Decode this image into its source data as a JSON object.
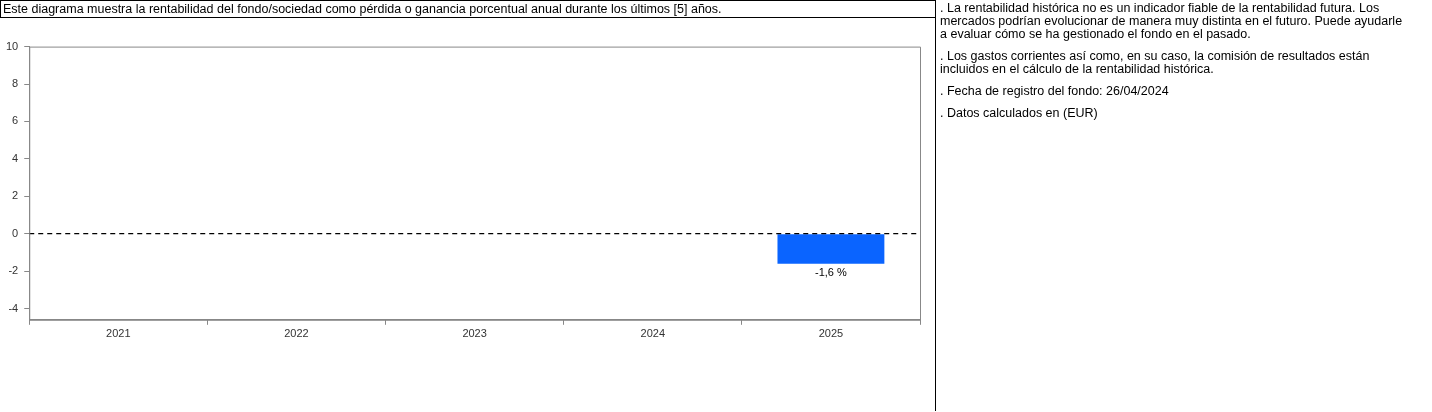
{
  "chart_data": {
    "type": "bar",
    "title": "Este diagrama muestra la rentabilidad del fondo/sociedad como pérdida o ganancia porcentual anual durante los últimos [5] años.",
    "categories": [
      "2021",
      "2022",
      "2023",
      "2024",
      "2025"
    ],
    "series": [
      {
        "color": "#0a64ff",
        "values": [
          null,
          null,
          null,
          null,
          -1.6
        ],
        "value_labels": [
          null,
          null,
          null,
          null,
          "-1,6 %"
        ]
      }
    ],
    "ylim": [
      -4.6,
      10
    ],
    "yticks": [
      -4,
      -2,
      0,
      2,
      4,
      6,
      8,
      10
    ],
    "grid": false,
    "legend": false,
    "ref_lines": [
      {
        "axis": "y",
        "value": 0,
        "line_style": "dashed",
        "color": "#000000"
      }
    ],
    "annotations": [
      ". La rentabilidad histórica no es un indicador fiable de la rentabilidad futura. Los mercados podrían evolucionar de manera muy distinta en el futuro. Puede ayudarle a evaluar cómo se ha gestionado el fondo en el pasado.",
      ". Los gastos corrientes así como, en su caso, la comisión de resultados están incluidos en el cálculo de la rentabilidad histórica.",
      ". Fecha de registro del fondo: 26/04/2024",
      ". Datos calculados en (EUR)"
    ]
  }
}
